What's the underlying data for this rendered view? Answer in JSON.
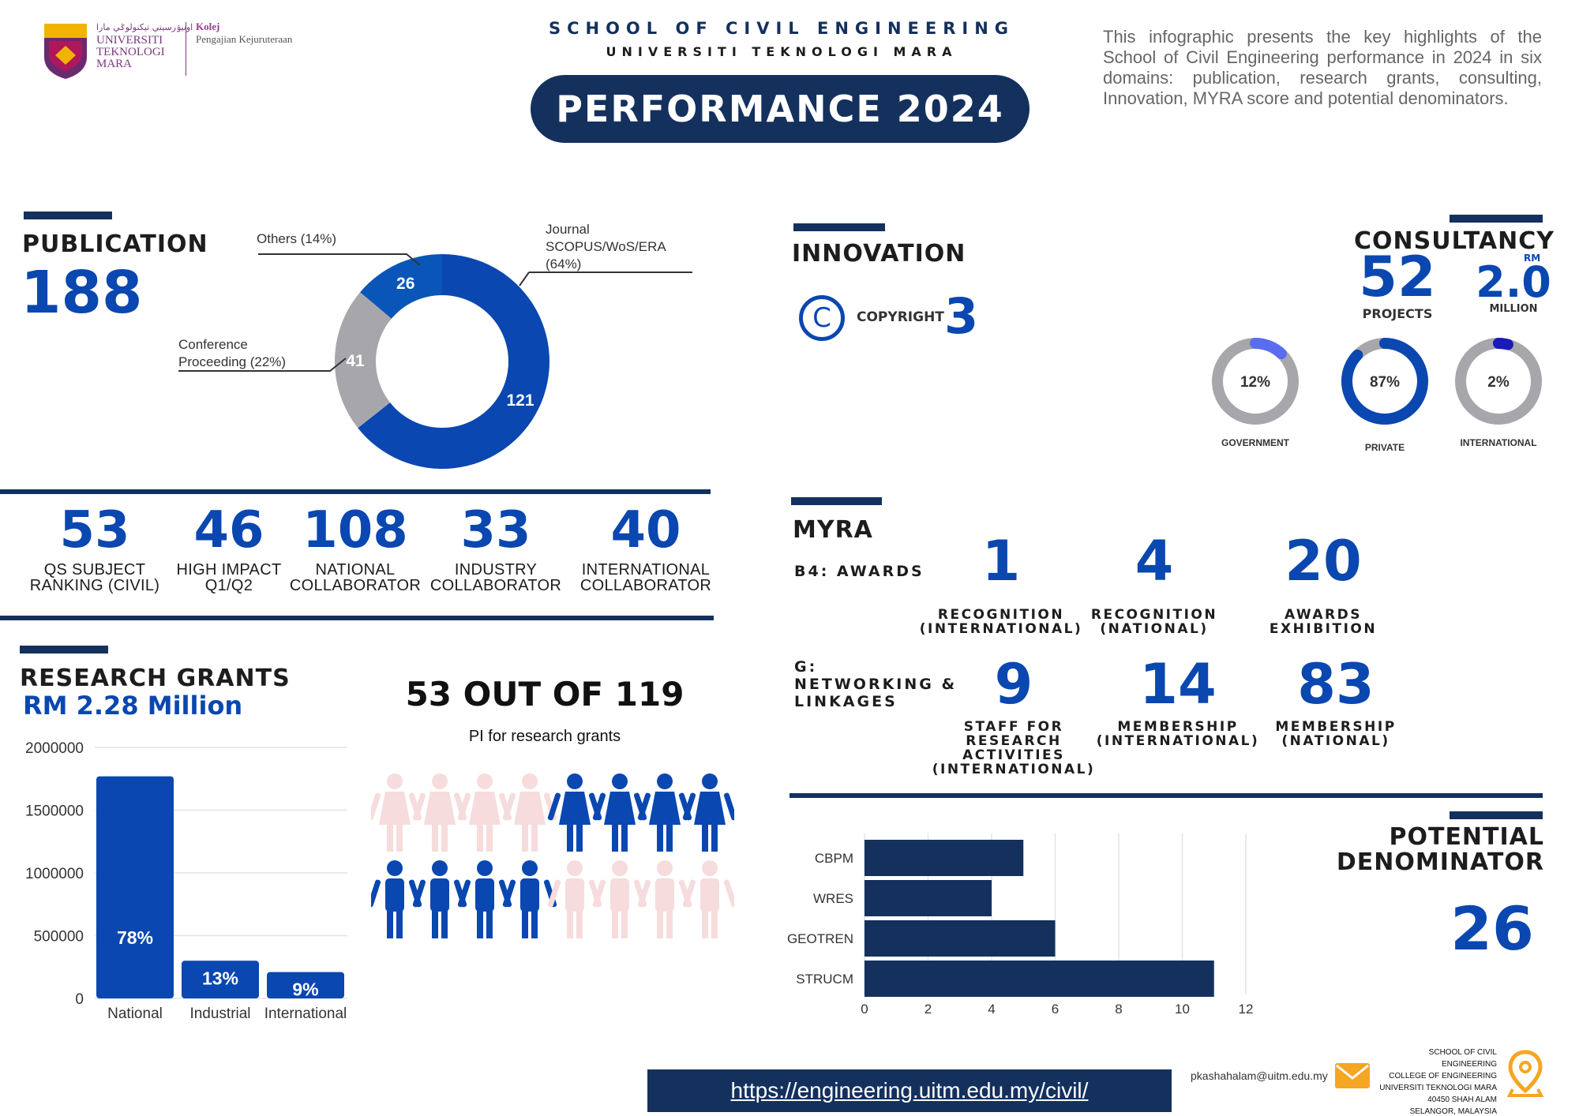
{
  "header": {
    "logo_uni": [
      "UNIVERSITI",
      "TEKNOLOGI",
      "MARA"
    ],
    "logo_jawi": "اونيۏرسيتي تيكنولوݢي مارا",
    "logo_kolej": "Kolej",
    "logo_kolej_sub": "Pengajian Kejuruteraan",
    "school": "SCHOOL OF CIVIL ENGINEERING",
    "university": "UNIVERSITI TEKNOLOGI MARA",
    "title": "PERFORMANCE 2024",
    "intro": "This infographic presents the key highlights of the School of Civil Engineering performance in 2024 in six domains: publication, research grants, consulting, Innovation, MYRA score and potential denominators."
  },
  "publication": {
    "heading": "PUBLICATION",
    "total": "188",
    "label_others": "Others (14%)",
    "label_journal": [
      "Journal",
      "SCOPUS/WoS/ERA",
      "(64%)"
    ],
    "label_conference": [
      "Conference",
      "Proceeding (22%)"
    ]
  },
  "stats": [
    {
      "value": "53",
      "label": [
        "QS SUBJECT",
        "RANKING (CIVIL)"
      ]
    },
    {
      "value": "46",
      "label": [
        "HIGH IMPACT",
        "Q1/Q2"
      ]
    },
    {
      "value": "108",
      "label": [
        "NATIONAL",
        "COLLABORATOR"
      ]
    },
    {
      "value": "33",
      "label": [
        "INDUSTRY",
        "COLLABORATOR"
      ]
    },
    {
      "value": "40",
      "label": [
        "INTERNATIONAL",
        "COLLABORATOR"
      ]
    }
  ],
  "research": {
    "heading": "RESEARCH GRANTS",
    "amount": "RM 2.28 Million",
    "pi_headline": "53 OUT OF 119",
    "pi_sub": "PI for research grants",
    "pi_total": 16,
    "pi_highlighted": 8
  },
  "innovation": {
    "heading": "INNOVATION",
    "copyright_label": "COPYRIGHT",
    "copyright_value": "3",
    "copyright_symbol": "C"
  },
  "consultancy": {
    "heading": "CONSULTANCY",
    "projects": "52",
    "projects_label": "PROJECTS",
    "amount": "2.0",
    "amount_prefix": "RM",
    "amount_label": "MILLION",
    "rings": [
      {
        "pct": 12,
        "text": "12%",
        "label": "GOVERNMENT",
        "color": "#5a6cf0"
      },
      {
        "pct": 87,
        "text": "87%",
        "label": "PRIVATE",
        "color": "#0a47b0"
      },
      {
        "pct": 2,
        "text": "2%",
        "label": "INTERNATIONAL",
        "color": "#1a1ab8"
      }
    ]
  },
  "myra": {
    "heading": "MYRA",
    "b4_label": "B4: AWARDS",
    "g_label": [
      "G:",
      "NETWORKING &",
      "LINKAGES"
    ],
    "b4": [
      {
        "value": "1",
        "label": [
          "RECOGNITION",
          "(INTERNATIONAL)"
        ]
      },
      {
        "value": "4",
        "label": [
          "RECOGNITION",
          "(NATIONAL)"
        ]
      },
      {
        "value": "20",
        "label": [
          "AWARDS",
          "EXHIBITION"
        ]
      }
    ],
    "g": [
      {
        "value": "9",
        "label": [
          "STAFF FOR",
          "RESEARCH",
          "ACTIVITIES",
          "(INTERNATIONAL)"
        ]
      },
      {
        "value": "14",
        "label": [
          "MEMBERSHIP",
          "(INTERNATIONAL)"
        ]
      },
      {
        "value": "83",
        "label": [
          "MEMBERSHIP",
          "(NATIONAL)"
        ]
      }
    ]
  },
  "potential": {
    "heading": [
      "POTENTIAL",
      "DENOMINATOR"
    ],
    "value": "26"
  },
  "footer": {
    "url": "https://engineering.uitm.edu.my/civil/",
    "email": "pkashahalam@uitm.edu.my",
    "address": [
      "SCHOOL OF CIVIL ENGINEERING",
      "COLLEGE OF ENGINEERING",
      "UNIVERSITI TEKNOLOGI MARA",
      "40450 SHAH ALAM",
      "SELANGOR, MALAYSIA"
    ]
  },
  "colors": {
    "navy": "#14315e",
    "blue": "#0a47b0",
    "grey": "#a7a7ab",
    "pink": "#f6dcdc"
  },
  "chart_data": [
    {
      "type": "pie",
      "categories": [
        "Journal SCOPUS/WoS/ERA",
        "Conference Proceeding",
        "Others"
      ],
      "values": [
        121,
        41,
        26
      ],
      "percent": [
        64,
        22,
        14
      ],
      "colors": [
        "#0a47b0",
        "#a7a7ab",
        "#0a47b0"
      ],
      "donut": true
    },
    {
      "type": "bar",
      "categories": [
        "National",
        "Industrial",
        "International"
      ],
      "values": [
        1770000,
        300000,
        210000
      ],
      "data_labels": [
        "78%",
        "13%",
        "9%"
      ],
      "ylim": [
        0,
        2000000
      ],
      "yticks": [
        "2000000",
        "1500000",
        "1000000",
        "500000",
        "0"
      ],
      "grid": true
    },
    {
      "type": "bar",
      "orientation": "horizontal",
      "categories": [
        "CBPM",
        "WRES",
        "GEOTREN",
        "STRUCM"
      ],
      "values": [
        5,
        4,
        6,
        11
      ],
      "xlim": [
        0,
        12
      ],
      "xticks": [
        "0",
        "2",
        "4",
        "6",
        "8",
        "10",
        "12"
      ],
      "grid": true
    }
  ]
}
